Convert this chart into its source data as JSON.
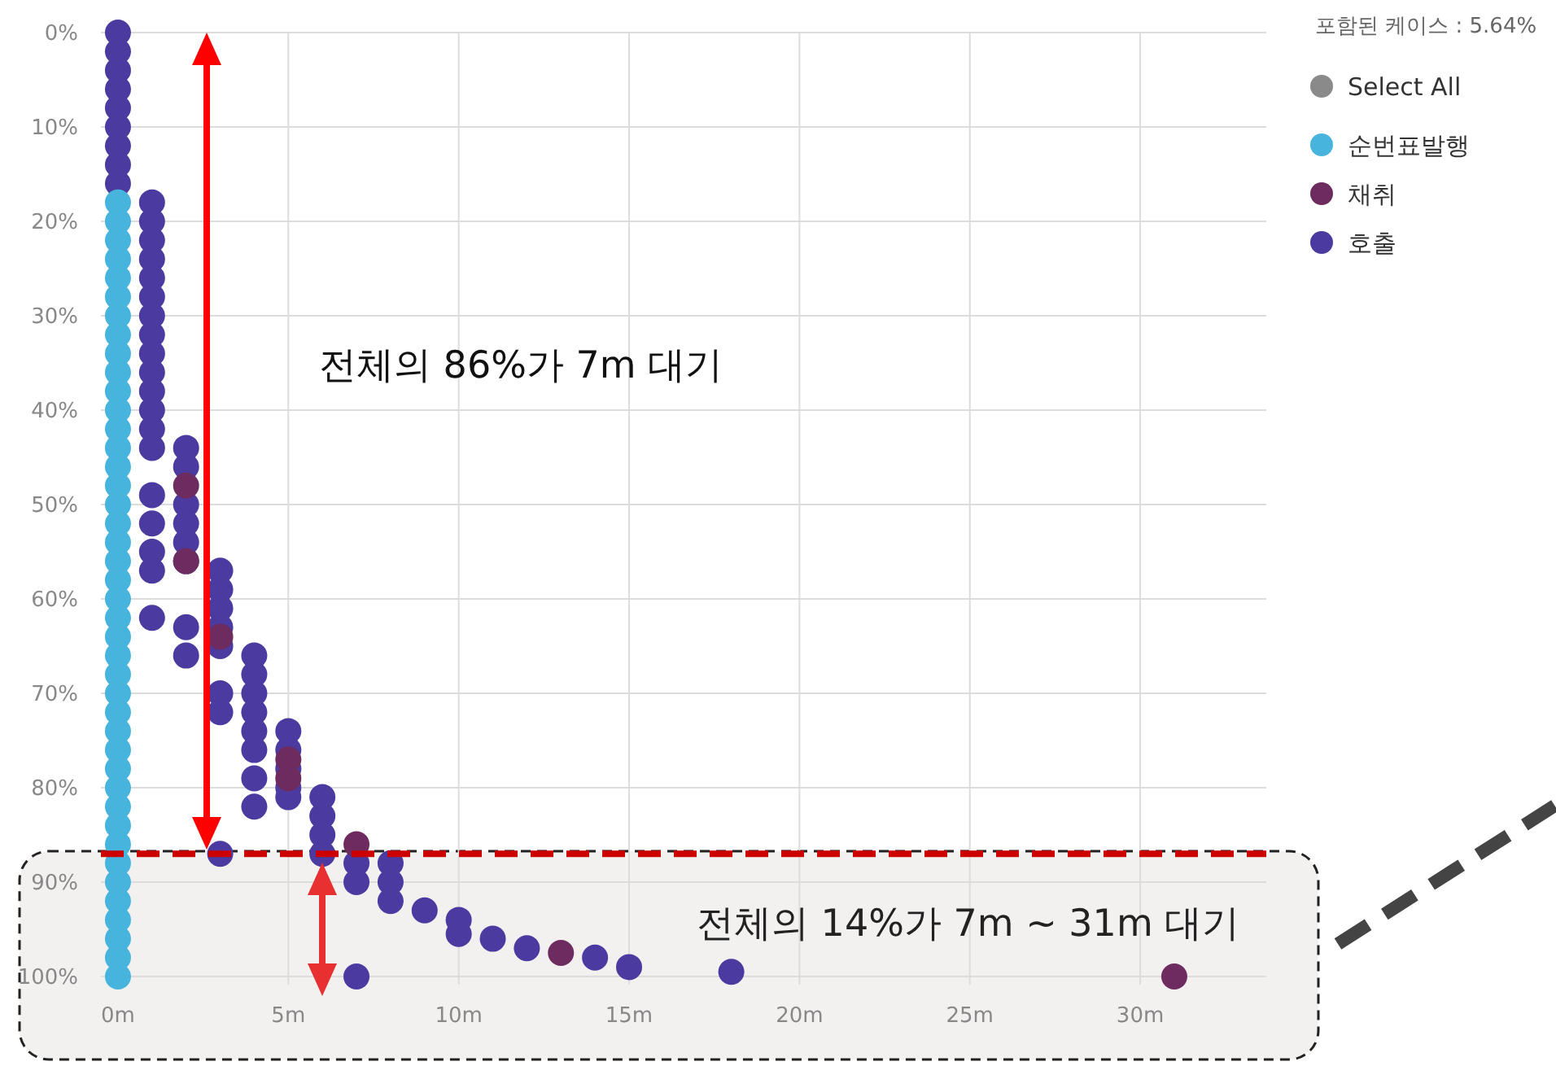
{
  "chart_data": {
    "type": "scatter",
    "legend_title": "포함된 케이스 : 5.64%",
    "annotations": [
      "Select All",
      "전체의 86%가 7m 대기",
      "전체의 14%가 7m ~ 31m 대기"
    ],
    "xlim": [
      -0.5,
      33.7
    ],
    "ylim": [
      100,
      0
    ],
    "xticks": [
      {
        "value": 0,
        "label": "0m"
      },
      {
        "value": 5,
        "label": "5m"
      },
      {
        "value": 10,
        "label": "10m"
      },
      {
        "value": 15,
        "label": "15m"
      },
      {
        "value": 20,
        "label": "20m"
      },
      {
        "value": 25,
        "label": "25m"
      },
      {
        "value": 30,
        "label": "30m"
      }
    ],
    "yticks": [
      {
        "value": 0,
        "label": "0%"
      },
      {
        "value": 10,
        "label": "10%"
      },
      {
        "value": 20,
        "label": "20%"
      },
      {
        "value": 30,
        "label": "30%"
      },
      {
        "value": 40,
        "label": "40%"
      },
      {
        "value": 50,
        "label": "50%"
      },
      {
        "value": 60,
        "label": "60%"
      },
      {
        "value": 70,
        "label": "70%"
      },
      {
        "value": 80,
        "label": "80%"
      },
      {
        "value": 90,
        "label": "90%"
      },
      {
        "value": 100,
        "label": "100%"
      }
    ],
    "grid": true,
    "legend": "right",
    "marker": "circle",
    "ref_lines": [
      {
        "axis": "y",
        "value": 87,
        "color": "#cc0000",
        "line_style": "dashed"
      }
    ],
    "series": [
      {
        "name": "순번표발행",
        "color": "#46b4dd",
        "x": [
          0,
          0,
          0,
          0,
          0,
          0,
          0,
          0,
          0,
          0,
          0,
          0,
          0,
          0,
          0,
          0,
          0,
          0,
          0,
          0,
          0,
          0,
          0,
          0,
          0,
          0,
          0,
          0,
          0,
          0,
          0,
          0,
          0,
          0,
          0,
          0,
          0,
          0,
          0,
          0,
          0,
          0
        ],
        "values": [
          18,
          20,
          22,
          24,
          26,
          28,
          30,
          32,
          34,
          36,
          38,
          40,
          42,
          44,
          46,
          48,
          50,
          52,
          54,
          56,
          58,
          60,
          62,
          64,
          66,
          68,
          70,
          72,
          74,
          76,
          78,
          80,
          82,
          84,
          86,
          88,
          90,
          92,
          94,
          96,
          98,
          100
        ]
      },
      {
        "name": "채취",
        "color": "#6e2b5f",
        "x": [
          2,
          2,
          3,
          5,
          5,
          7,
          13,
          31
        ],
        "values": [
          48,
          56,
          64,
          77,
          79,
          86,
          97.5,
          100
        ]
      },
      {
        "name": "호출",
        "color": "#4b3ba0",
        "x": [
          0,
          0,
          0,
          0,
          0,
          0,
          0,
          0,
          0,
          1,
          1,
          1,
          1,
          1,
          1,
          1,
          1,
          1,
          1,
          1,
          1,
          1,
          1,
          1,
          1,
          1,
          1,
          1,
          2,
          2,
          2,
          2,
          2,
          2,
          2,
          2,
          3,
          3,
          3,
          3,
          3,
          3,
          3,
          3,
          4,
          4,
          4,
          4,
          4,
          4,
          4,
          4,
          5,
          5,
          5,
          5,
          5,
          6,
          6,
          6,
          6,
          7,
          7,
          7,
          8,
          8,
          8,
          9,
          10,
          10,
          11,
          12,
          14,
          15,
          18
        ],
        "values": [
          0,
          2,
          4,
          6,
          8,
          10,
          12,
          14,
          16,
          18,
          20,
          22,
          24,
          26,
          28,
          30,
          32,
          34,
          36,
          38,
          40,
          42,
          44,
          49,
          52,
          55,
          57,
          62,
          44,
          46,
          50,
          52,
          54,
          56,
          63,
          66,
          57,
          59,
          61,
          63,
          65,
          70,
          72,
          87,
          66,
          68,
          70,
          72,
          74,
          76,
          79,
          82,
          74,
          76,
          78,
          80,
          81,
          81,
          83,
          85,
          87,
          88,
          90,
          100,
          88,
          90,
          92,
          93,
          94,
          95.5,
          96,
          97,
          98,
          99,
          99.5
        ]
      }
    ]
  }
}
